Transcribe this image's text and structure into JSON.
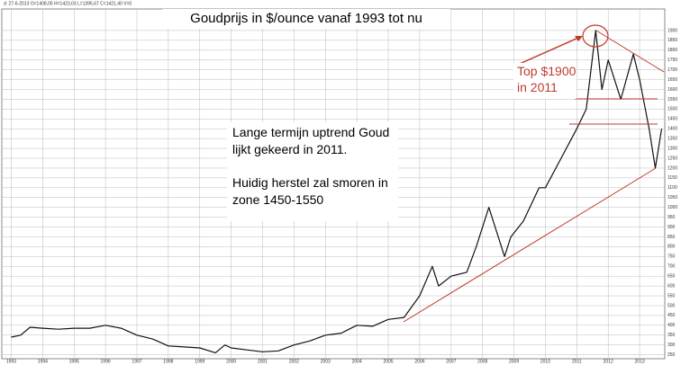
{
  "chart_data": {
    "type": "line",
    "title": "Goudprijs in $/ounce vanaf 1993 tot nu",
    "header_info": "d: 27-6-2013 O=1408,05 H=1423,03 L=1395,67 C=1421,40 V=0",
    "annotations": [
      "Top $1900 in 2011",
      "Lange termijn uptrend Goud lijkt gekeerd in 2011.",
      "Huidig herstel zal smoren in zone 1450-1550"
    ],
    "series": [
      {
        "name": "Goudprijs",
        "color": "#111111",
        "x": [
          1993.0,
          1993.3,
          1993.6,
          1994.0,
          1994.5,
          1995.0,
          1995.5,
          1996.0,
          1996.5,
          1997.0,
          1997.5,
          1998.0,
          1998.5,
          1999.0,
          1999.5,
          1999.8,
          2000.0,
          2000.5,
          2001.0,
          2001.5,
          2002.0,
          2002.5,
          2003.0,
          2003.5,
          2004.0,
          2004.5,
          2005.0,
          2005.5,
          2006.0,
          2006.4,
          2006.6,
          2007.0,
          2007.5,
          2007.8,
          2008.2,
          2008.7,
          2008.9,
          2009.3,
          2009.8,
          2010.0,
          2010.5,
          2011.0,
          2011.3,
          2011.6,
          2011.8,
          2012.0,
          2012.4,
          2012.8,
          2013.0,
          2013.3,
          2013.5,
          2013.7
        ],
        "values": [
          340,
          350,
          390,
          385,
          380,
          385,
          385,
          400,
          385,
          350,
          330,
          295,
          290,
          285,
          260,
          300,
          285,
          275,
          265,
          270,
          300,
          320,
          350,
          360,
          400,
          395,
          430,
          440,
          550,
          700,
          600,
          650,
          670,
          800,
          1000,
          750,
          850,
          930,
          1100,
          1100,
          1250,
          1400,
          1500,
          1900,
          1600,
          1750,
          1550,
          1780,
          1650,
          1400,
          1200,
          1400
        ]
      }
    ],
    "xlim": [
      1992.7,
      2013.8
    ],
    "xticks": [
      1993,
      1994,
      1995,
      1996,
      1997,
      1998,
      1999,
      2000,
      2001,
      2002,
      2003,
      2004,
      2005,
      2006,
      2007,
      2008,
      2009,
      2010,
      2011,
      2012,
      2013
    ],
    "ylim": [
      230,
      1950
    ],
    "yticks": [
      250,
      300,
      350,
      400,
      450,
      500,
      550,
      600,
      650,
      700,
      750,
      800,
      850,
      900,
      950,
      1000,
      1050,
      1100,
      1150,
      1200,
      1250,
      1300,
      1350,
      1400,
      1450,
      1500,
      1550,
      1600,
      1650,
      1700,
      1750,
      1800,
      1850,
      1900
    ],
    "grid": true
  }
}
